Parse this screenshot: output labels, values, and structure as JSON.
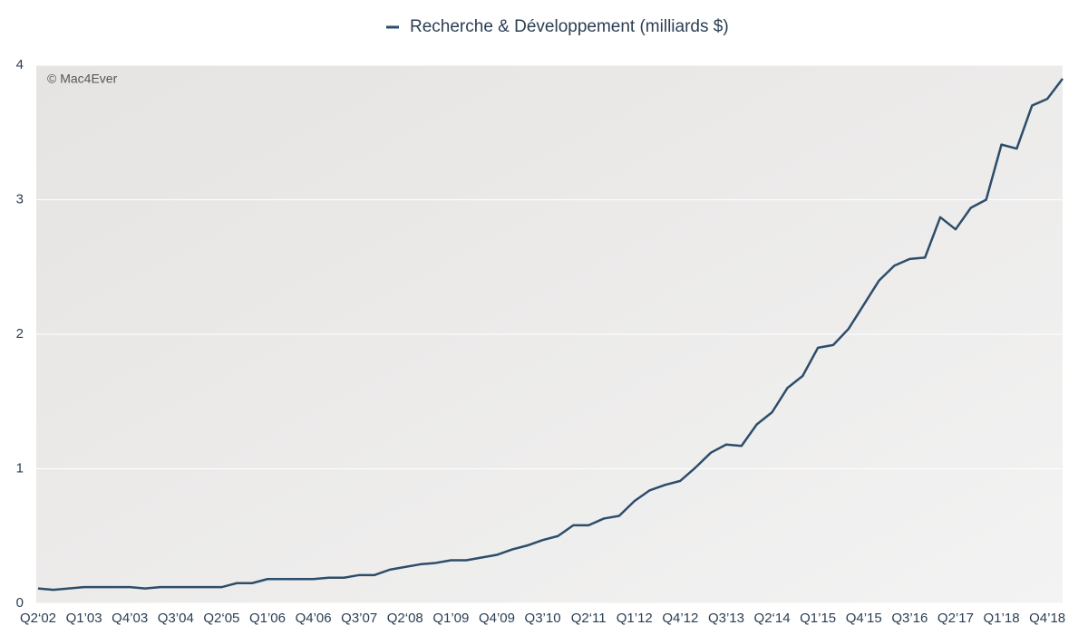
{
  "chart_data": {
    "type": "line",
    "annotation": "© Mac4Ever",
    "categories": [
      "Q2‘02",
      null,
      null,
      "Q1’03",
      null,
      null,
      "Q4’03",
      null,
      null,
      "Q3’04",
      null,
      null,
      "Q2‘05",
      null,
      null,
      "Q1’06",
      null,
      null,
      "Q4’06",
      null,
      null,
      "Q3’07",
      null,
      null,
      "Q2‘08",
      null,
      null,
      "Q1’09",
      null,
      null,
      "Q4’09",
      null,
      null,
      "Q3’10",
      null,
      null,
      "Q2‘11",
      null,
      null,
      "Q1’12",
      null,
      null,
      "Q4’12",
      null,
      null,
      "Q3’13",
      null,
      null,
      "Q2‘14",
      null,
      null,
      "Q1’15",
      null,
      null,
      "Q4’15",
      null,
      null,
      "Q3’16",
      null,
      null,
      "Q2’17",
      null,
      null,
      "Q1’18",
      null,
      null,
      "Q4’18",
      null
    ],
    "series": [
      {
        "name": "Recherche & Développement (milliards $)",
        "color": "#2d4d6b",
        "values": [
          0.11,
          0.1,
          0.11,
          0.12,
          0.12,
          0.12,
          0.12,
          0.11,
          0.12,
          0.12,
          0.12,
          0.12,
          0.12,
          0.15,
          0.15,
          0.18,
          0.18,
          0.18,
          0.18,
          0.19,
          0.19,
          0.21,
          0.21,
          0.25,
          0.27,
          0.29,
          0.3,
          0.32,
          0.32,
          0.34,
          0.36,
          0.4,
          0.43,
          0.47,
          0.5,
          0.58,
          0.58,
          0.63,
          0.65,
          0.76,
          0.84,
          0.88,
          0.91,
          1.01,
          1.12,
          1.18,
          1.17,
          1.33,
          1.42,
          1.6,
          1.69,
          1.9,
          1.92,
          2.04,
          2.22,
          2.4,
          2.51,
          2.56,
          2.57,
          2.87,
          2.78,
          2.94,
          3.0,
          3.41,
          3.38,
          3.7,
          3.75,
          3.9
        ]
      }
    ],
    "ylim": [
      0,
      4
    ],
    "yticks": [
      0,
      1,
      2,
      3,
      4
    ],
    "grid": true,
    "legend": "top"
  }
}
